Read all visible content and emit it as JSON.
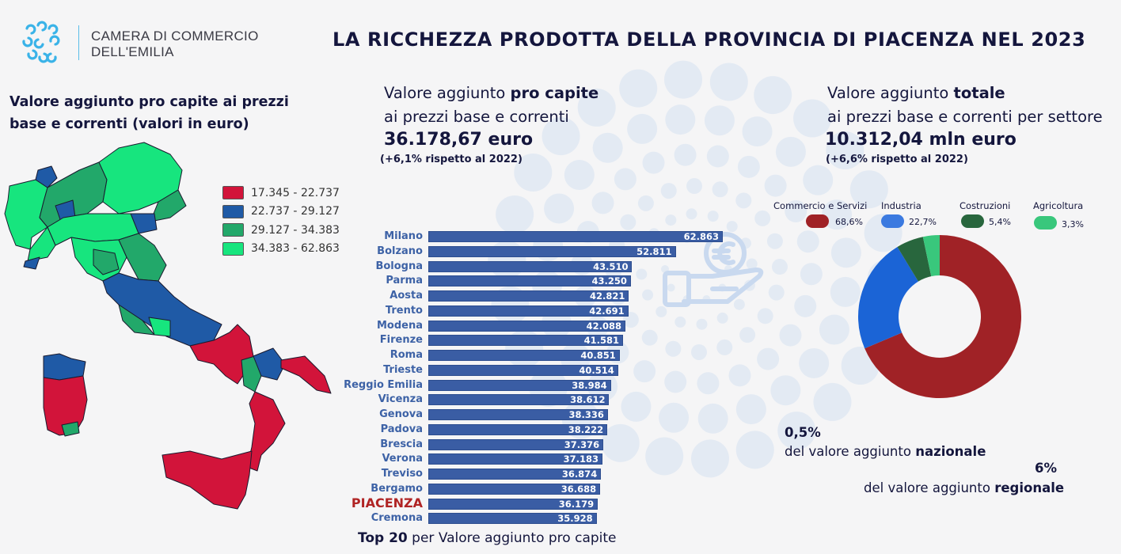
{
  "colors": {
    "title": "#14163d",
    "bar": "#3a5da4",
    "highlight": "#b02424",
    "map_bins": [
      "#d2143a",
      "#1f5aa6",
      "#22a86a",
      "#17e57e"
    ],
    "donut": [
      "#a02226",
      "#1b64d6",
      "#28663d",
      "#39c77c"
    ],
    "dots": "#dfe7f3"
  },
  "logo": {
    "line1": "CAMERA DI COMMERCIO",
    "line2": "DELL'EMILIA",
    "icon": "chamber-of-commerce-logo-icon"
  },
  "header": {
    "title": "LA RICCHEZZA PRODOTTA DELLA PROVINCIA DI PIACENZA NEL 2023"
  },
  "map": {
    "title_line1": "Valore aggiunto pro capite ai prezzi",
    "title_line2": "base e correnti (valori in euro)",
    "legend": [
      {
        "label": "17.345 - 22.737"
      },
      {
        "label": "22.737 - 29.127"
      },
      {
        "label": "29.127 - 34.383"
      },
      {
        "label": "34.383 - 62.863"
      }
    ]
  },
  "kpi_pro_capite": {
    "line1_prefix": "Valore aggiunto ",
    "line1_bold": "pro capite",
    "line2": "ai prezzi base  e correnti",
    "value": "36.178,67 euro",
    "change": "(+6,1% rispetto al 2022)"
  },
  "kpi_totale": {
    "line1_prefix": "Valore aggiunto ",
    "line1_bold": "totale",
    "line2": "ai prezzi base  e correnti  per settore",
    "value": "10.312,04 mln euro",
    "change": "(+6,6% rispetto al 2022)"
  },
  "shares": {
    "national_value": "0,5%",
    "national_prefix": "del valore aggiunto ",
    "national_bold": "nazionale",
    "regional_value": "6%",
    "regional_prefix": "del valore aggiunto ",
    "regional_bold": "regionale"
  },
  "hand_icon": "euro-hand-icon",
  "chart_data": [
    {
      "type": "bar",
      "orientation": "horizontal",
      "title": "",
      "caption_bold": "Top 20",
      "caption_rest": " per Valore aggiunto pro capite",
      "xlabel": "",
      "ylabel": "",
      "xlim": [
        0,
        62863
      ],
      "highlight": "PIACENZA",
      "categories": [
        "Milano",
        "Bolzano",
        "Bologna",
        "Parma",
        "Aosta",
        "Trento",
        "Modena",
        "Firenze",
        "Roma",
        "Trieste",
        "Reggio Emilia",
        "Vicenza",
        "Genova",
        "Padova",
        "Brescia",
        "Verona",
        "Treviso",
        "Bergamo",
        "PIACENZA",
        "Cremona"
      ],
      "values": [
        62863,
        52811,
        43510,
        43250,
        42821,
        42691,
        42088,
        41581,
        40851,
        40514,
        38984,
        38612,
        38336,
        38222,
        37376,
        37183,
        36874,
        36688,
        36179,
        35928
      ],
      "value_labels": [
        "62.863",
        "52.811",
        "43.510",
        "43.250",
        "42.821",
        "42.691",
        "42.088",
        "41.581",
        "40.851",
        "40.514",
        "38.984",
        "38.612",
        "38.336",
        "38.222",
        "37.376",
        "37.183",
        "36.874",
        "36.688",
        "36.179",
        "35.928"
      ]
    },
    {
      "type": "pie",
      "donut": true,
      "title": "",
      "legend_position": "top",
      "labels": [
        "Commercio e Servizi",
        "Industria",
        "Costruzioni",
        "Agricoltura"
      ],
      "values": [
        68.6,
        22.7,
        5.4,
        3.3
      ],
      "value_labels": [
        "68,6%",
        "22,7%",
        "5,4%",
        "3,3%"
      ]
    }
  ]
}
